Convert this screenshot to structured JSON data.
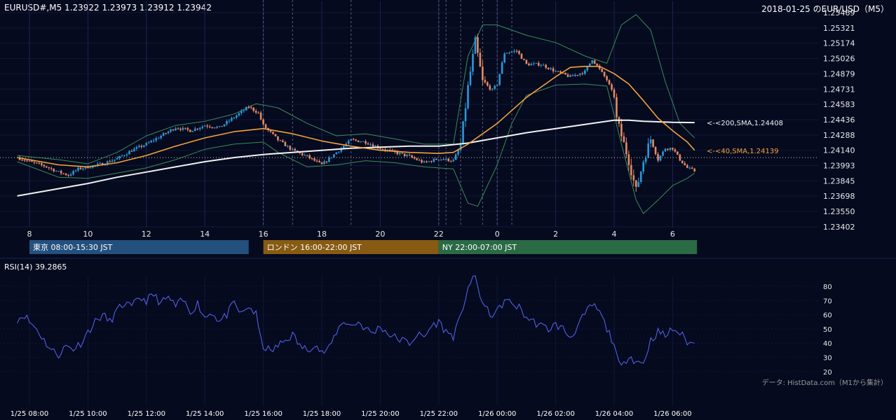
{
  "header": {
    "symbol_ohlc": "EURUSD#,M5 1.23922 1.23973 1.23912 1.23942",
    "date_title": "2018-01-25 のEUR/USD（M5）"
  },
  "sessions": [
    {
      "label": "東京 08:00-15:30 JST",
      "color": "#24507e"
    },
    {
      "label": "ロンドン 16:00-22:00 JST",
      "color": "#875b13"
    },
    {
      "label": "NY 22:00-07:00 JST",
      "color": "#2a6a45"
    }
  ],
  "source_note": "データ: HistData.com（M1から集計）",
  "colors": {
    "background": "#050a1e",
    "up_candle": "#2a98d8",
    "down_candle": "#e48a64",
    "sma40": "#f2a23a",
    "sma200": "#f2f2f2",
    "bollinger": "#3b8c5a",
    "rsi": "#5060e6"
  },
  "chart_data": [
    {
      "type": "candlestick",
      "title": "EURUSD#,M5",
      "xlabel": "",
      "ylabel": "",
      "yticks": [
        "1.25469",
        "1.25321",
        "1.25174",
        "1.25026",
        "1.24879",
        "1.24731",
        "1.24583",
        "1.24436",
        "1.24288",
        "1.24140",
        "1.23993",
        "1.23845",
        "1.23698",
        "1.23550",
        "1.23402"
      ],
      "ylim": [
        1.23402,
        1.25469
      ],
      "xticks": [
        "8",
        "10",
        "12",
        "14",
        "16",
        "18",
        "20",
        "22",
        "0",
        "2",
        "4",
        "6"
      ],
      "x_range_hours": [
        7.6,
        6.8
      ],
      "reference_line": 1.2407,
      "annotations": [
        {
          "text": "<-<200,SMA,1.24408",
          "value": 1.24408,
          "series": "sma200"
        },
        {
          "text": "<-<40,SMA,1.24139",
          "value": 1.24139,
          "series": "sma40"
        }
      ],
      "close_path": [
        [
          "7:35",
          1.2407
        ],
        [
          "8:00",
          1.2403
        ],
        [
          "8:30",
          1.2399
        ],
        [
          "9:00",
          1.2393
        ],
        [
          "9:20",
          1.239
        ],
        [
          "9:40",
          1.2396
        ],
        [
          "10:00",
          1.2398
        ],
        [
          "10:30",
          1.2401
        ],
        [
          "11:00",
          1.2406
        ],
        [
          "11:30",
          1.2414
        ],
        [
          "12:00",
          1.242
        ],
        [
          "12:30",
          1.2428
        ],
        [
          "13:00",
          1.2436
        ],
        [
          "13:30",
          1.2433
        ],
        [
          "14:00",
          1.2438
        ],
        [
          "14:30",
          1.2436
        ],
        [
          "15:00",
          1.2446
        ],
        [
          "15:30",
          1.2456
        ],
        [
          "15:50",
          1.245
        ],
        [
          "16:00",
          1.2438
        ],
        [
          "16:30",
          1.2424
        ],
        [
          "17:00",
          1.2414
        ],
        [
          "17:30",
          1.2408
        ],
        [
          "18:00",
          1.24
        ],
        [
          "18:30",
          1.2412
        ],
        [
          "19:00",
          1.2424
        ],
        [
          "19:30",
          1.2422
        ],
        [
          "20:00",
          1.2416
        ],
        [
          "20:30",
          1.2412
        ],
        [
          "21:00",
          1.2408
        ],
        [
          "21:30",
          1.2402
        ],
        [
          "22:00",
          1.2406
        ],
        [
          "22:30",
          1.2404
        ],
        [
          "22:45",
          1.2419
        ],
        [
          "23:00",
          1.2475
        ],
        [
          "23:15",
          1.2519
        ],
        [
          "23:30",
          1.248
        ],
        [
          "23:50",
          1.2472
        ],
        [
          "0:00",
          1.2478
        ],
        [
          "0:15",
          1.2508
        ],
        [
          "0:40",
          1.251
        ],
        [
          "1:00",
          1.2497
        ],
        [
          "1:30",
          1.2497
        ],
        [
          "2:00",
          1.249
        ],
        [
          "2:30",
          1.2485
        ],
        [
          "3:00",
          1.249
        ],
        [
          "3:15",
          1.2502
        ],
        [
          "3:30",
          1.2492
        ],
        [
          "3:45",
          1.2482
        ],
        [
          "4:00",
          1.2466
        ],
        [
          "4:05",
          1.2444
        ],
        [
          "4:30",
          1.2404
        ],
        [
          "4:45",
          1.2375
        ],
        [
          "5:00",
          1.2404
        ],
        [
          "5:15",
          1.2425
        ],
        [
          "5:30",
          1.2405
        ],
        [
          "5:45",
          1.2416
        ],
        [
          "6:00",
          1.2416
        ],
        [
          "6:15",
          1.2405
        ],
        [
          "6:30",
          1.2397
        ],
        [
          "6:45",
          1.2394
        ]
      ],
      "sma40_path": [
        [
          "7:35",
          1.2407
        ],
        [
          "9:00",
          1.24
        ],
        [
          "10:00",
          1.2398
        ],
        [
          "11:00",
          1.2402
        ],
        [
          "12:00",
          1.2409
        ],
        [
          "13:00",
          1.2418
        ],
        [
          "14:00",
          1.2426
        ],
        [
          "15:00",
          1.2432
        ],
        [
          "16:00",
          1.2435
        ],
        [
          "17:00",
          1.243
        ],
        [
          "18:00",
          1.2423
        ],
        [
          "19:00",
          1.2418
        ],
        [
          "20:00",
          1.2414
        ],
        [
          "21:00",
          1.2412
        ],
        [
          "22:00",
          1.2411
        ],
        [
          "22:30",
          1.2412
        ],
        [
          "23:00",
          1.242
        ],
        [
          "0:00",
          1.244
        ],
        [
          "1:00",
          1.2465
        ],
        [
          "2:00",
          1.2485
        ],
        [
          "2:30",
          1.2494
        ],
        [
          "3:00",
          1.2495
        ],
        [
          "3:30",
          1.2495
        ],
        [
          "4:00",
          1.2488
        ],
        [
          "4:30",
          1.2478
        ],
        [
          "5:00",
          1.2462
        ],
        [
          "5:30",
          1.2445
        ],
        [
          "6:00",
          1.2433
        ],
        [
          "6:30",
          1.2422
        ],
        [
          "6:45",
          1.2414
        ]
      ],
      "sma200_path": [
        [
          "7:35",
          1.237
        ],
        [
          "9:00",
          1.2377
        ],
        [
          "10:00",
          1.2382
        ],
        [
          "11:00",
          1.2388
        ],
        [
          "12:00",
          1.2393
        ],
        [
          "13:00",
          1.2398
        ],
        [
          "14:00",
          1.2403
        ],
        [
          "15:00",
          1.2407
        ],
        [
          "16:00",
          1.241
        ],
        [
          "17:00",
          1.2412
        ],
        [
          "18:00",
          1.2414
        ],
        [
          "19:00",
          1.2416
        ],
        [
          "20:00",
          1.2417
        ],
        [
          "21:00",
          1.2418
        ],
        [
          "22:00",
          1.2418
        ],
        [
          "23:00",
          1.2421
        ],
        [
          "0:00",
          1.2426
        ],
        [
          "1:00",
          1.2431
        ],
        [
          "2:00",
          1.2435
        ],
        [
          "3:00",
          1.2439
        ],
        [
          "4:00",
          1.2443
        ],
        [
          "4:30",
          1.2443
        ],
        [
          "5:00",
          1.2442
        ],
        [
          "6:00",
          1.2441
        ],
        [
          "6:45",
          1.24408
        ]
      ],
      "bb_upper_path": [
        [
          "7:35",
          1.2409
        ],
        [
          "9:00",
          1.2405
        ],
        [
          "10:00",
          1.2401
        ],
        [
          "11:00",
          1.2412
        ],
        [
          "12:00",
          1.2428
        ],
        [
          "13:00",
          1.2438
        ],
        [
          "14:00",
          1.2442
        ],
        [
          "15:00",
          1.2449
        ],
        [
          "15:45",
          1.2459
        ],
        [
          "16:30",
          1.2455
        ],
        [
          "17:30",
          1.244
        ],
        [
          "18:30",
          1.2428
        ],
        [
          "19:30",
          1.243
        ],
        [
          "20:30",
          1.2425
        ],
        [
          "21:30",
          1.242
        ],
        [
          "22:30",
          1.242
        ],
        [
          "23:00",
          1.2505
        ],
        [
          "23:30",
          1.2535
        ],
        [
          "0:00",
          1.2535
        ],
        [
          "1:00",
          1.2525
        ],
        [
          "2:00",
          1.2518
        ],
        [
          "3:00",
          1.2505
        ],
        [
          "3:45",
          1.2498
        ],
        [
          "4:15",
          1.2535
        ],
        [
          "4:45",
          1.2545
        ],
        [
          "5:15",
          1.253
        ],
        [
          "5:45",
          1.248
        ],
        [
          "6:15",
          1.244
        ],
        [
          "6:45",
          1.2426
        ]
      ],
      "bb_lower_path": [
        [
          "7:35",
          1.2403
        ],
        [
          "9:00",
          1.2388
        ],
        [
          "10:00",
          1.2387
        ],
        [
          "11:00",
          1.2392
        ],
        [
          "12:00",
          1.2397
        ],
        [
          "13:00",
          1.2405
        ],
        [
          "14:00",
          1.2415
        ],
        [
          "15:00",
          1.242
        ],
        [
          "16:00",
          1.2422
        ],
        [
          "16:30",
          1.2412
        ],
        [
          "17:30",
          1.2398
        ],
        [
          "18:30",
          1.24
        ],
        [
          "19:30",
          1.2404
        ],
        [
          "20:30",
          1.2402
        ],
        [
          "21:30",
          1.2398
        ],
        [
          "22:30",
          1.2396
        ],
        [
          "23:00",
          1.2363
        ],
        [
          "23:20",
          1.236
        ],
        [
          "0:00",
          1.24
        ],
        [
          "0:30",
          1.244
        ],
        [
          "1:00",
          1.2467
        ],
        [
          "2:00",
          1.2477
        ],
        [
          "3:00",
          1.2478
        ],
        [
          "3:45",
          1.2476
        ],
        [
          "4:15",
          1.242
        ],
        [
          "4:45",
          1.2366
        ],
        [
          "5:00",
          1.2353
        ],
        [
          "5:30",
          1.2366
        ],
        [
          "6:00",
          1.238
        ],
        [
          "6:30",
          1.2387
        ],
        [
          "6:45",
          1.2392
        ]
      ]
    },
    {
      "type": "line",
      "title": "RSI(14) 39.2865",
      "name": "RSI(14)",
      "current_value": 39.2865,
      "ylim": [
        18,
        88
      ],
      "yticks": [
        "80",
        "70",
        "60",
        "50",
        "40",
        "30",
        "20"
      ],
      "xticks": [
        "1/25 08:00",
        "1/25 10:00",
        "1/25 12:00",
        "1/25 14:00",
        "1/25 16:00",
        "1/25 18:00",
        "1/25 20:00",
        "1/25 22:00",
        "1/26 00:00",
        "1/26 02:00",
        "1/26 04:00",
        "1/26 06:00"
      ],
      "path": [
        [
          "7:35",
          57
        ],
        [
          "7:50",
          60
        ],
        [
          "8:00",
          55
        ],
        [
          "8:15",
          50
        ],
        [
          "8:30",
          42
        ],
        [
          "8:45",
          35
        ],
        [
          "9:00",
          32
        ],
        [
          "9:15",
          38
        ],
        [
          "9:30",
          36
        ],
        [
          "9:45",
          40
        ],
        [
          "10:00",
          48
        ],
        [
          "10:15",
          55
        ],
        [
          "10:30",
          60
        ],
        [
          "10:45",
          55
        ],
        [
          "11:00",
          63
        ],
        [
          "11:15",
          68
        ],
        [
          "11:30",
          65
        ],
        [
          "11:45",
          72
        ],
        [
          "12:00",
          70
        ],
        [
          "12:15",
          74
        ],
        [
          "12:30",
          68
        ],
        [
          "12:45",
          72
        ],
        [
          "13:00",
          66
        ],
        [
          "13:15",
          70
        ],
        [
          "13:30",
          62
        ],
        [
          "13:45",
          68
        ],
        [
          "14:00",
          58
        ],
        [
          "14:15",
          62
        ],
        [
          "14:30",
          55
        ],
        [
          "14:45",
          60
        ],
        [
          "15:00",
          68
        ],
        [
          "15:15",
          60
        ],
        [
          "15:30",
          66
        ],
        [
          "15:45",
          60
        ],
        [
          "15:55",
          42
        ],
        [
          "16:00",
          38
        ],
        [
          "16:15",
          34
        ],
        [
          "16:30",
          38
        ],
        [
          "16:45",
          42
        ],
        [
          "17:00",
          46
        ],
        [
          "17:15",
          38
        ],
        [
          "17:30",
          35
        ],
        [
          "17:45",
          40
        ],
        [
          "18:00",
          33
        ],
        [
          "18:15",
          36
        ],
        [
          "18:30",
          48
        ],
        [
          "18:45",
          56
        ],
        [
          "19:00",
          52
        ],
        [
          "19:15",
          55
        ],
        [
          "19:30",
          50
        ],
        [
          "19:45",
          47
        ],
        [
          "20:00",
          52
        ],
        [
          "20:15",
          47
        ],
        [
          "20:30",
          44
        ],
        [
          "20:45",
          42
        ],
        [
          "21:00",
          40
        ],
        [
          "21:15",
          46
        ],
        [
          "21:30",
          44
        ],
        [
          "21:45",
          52
        ],
        [
          "22:00",
          55
        ],
        [
          "22:15",
          48
        ],
        [
          "22:30",
          45
        ],
        [
          "22:45",
          58
        ],
        [
          "23:00",
          80
        ],
        [
          "23:15",
          86
        ],
        [
          "23:30",
          68
        ],
        [
          "23:45",
          60
        ],
        [
          "0:00",
          62
        ],
        [
          "0:15",
          70
        ],
        [
          "0:30",
          68
        ],
        [
          "0:45",
          65
        ],
        [
          "1:00",
          58
        ],
        [
          "1:15",
          55
        ],
        [
          "1:30",
          52
        ],
        [
          "1:45",
          50
        ],
        [
          "2:00",
          53
        ],
        [
          "2:15",
          50
        ],
        [
          "2:30",
          44
        ],
        [
          "2:45",
          52
        ],
        [
          "3:00",
          60
        ],
        [
          "3:15",
          67
        ],
        [
          "3:30",
          62
        ],
        [
          "3:45",
          50
        ],
        [
          "4:00",
          40
        ],
        [
          "4:05",
          30
        ],
        [
          "4:15",
          22
        ],
        [
          "4:30",
          32
        ],
        [
          "4:45",
          27
        ],
        [
          "5:00",
          26
        ],
        [
          "5:15",
          42
        ],
        [
          "5:30",
          48
        ],
        [
          "5:45",
          45
        ],
        [
          "6:00",
          50
        ],
        [
          "6:15",
          47
        ],
        [
          "6:30",
          41
        ],
        [
          "6:45",
          39
        ]
      ]
    }
  ]
}
